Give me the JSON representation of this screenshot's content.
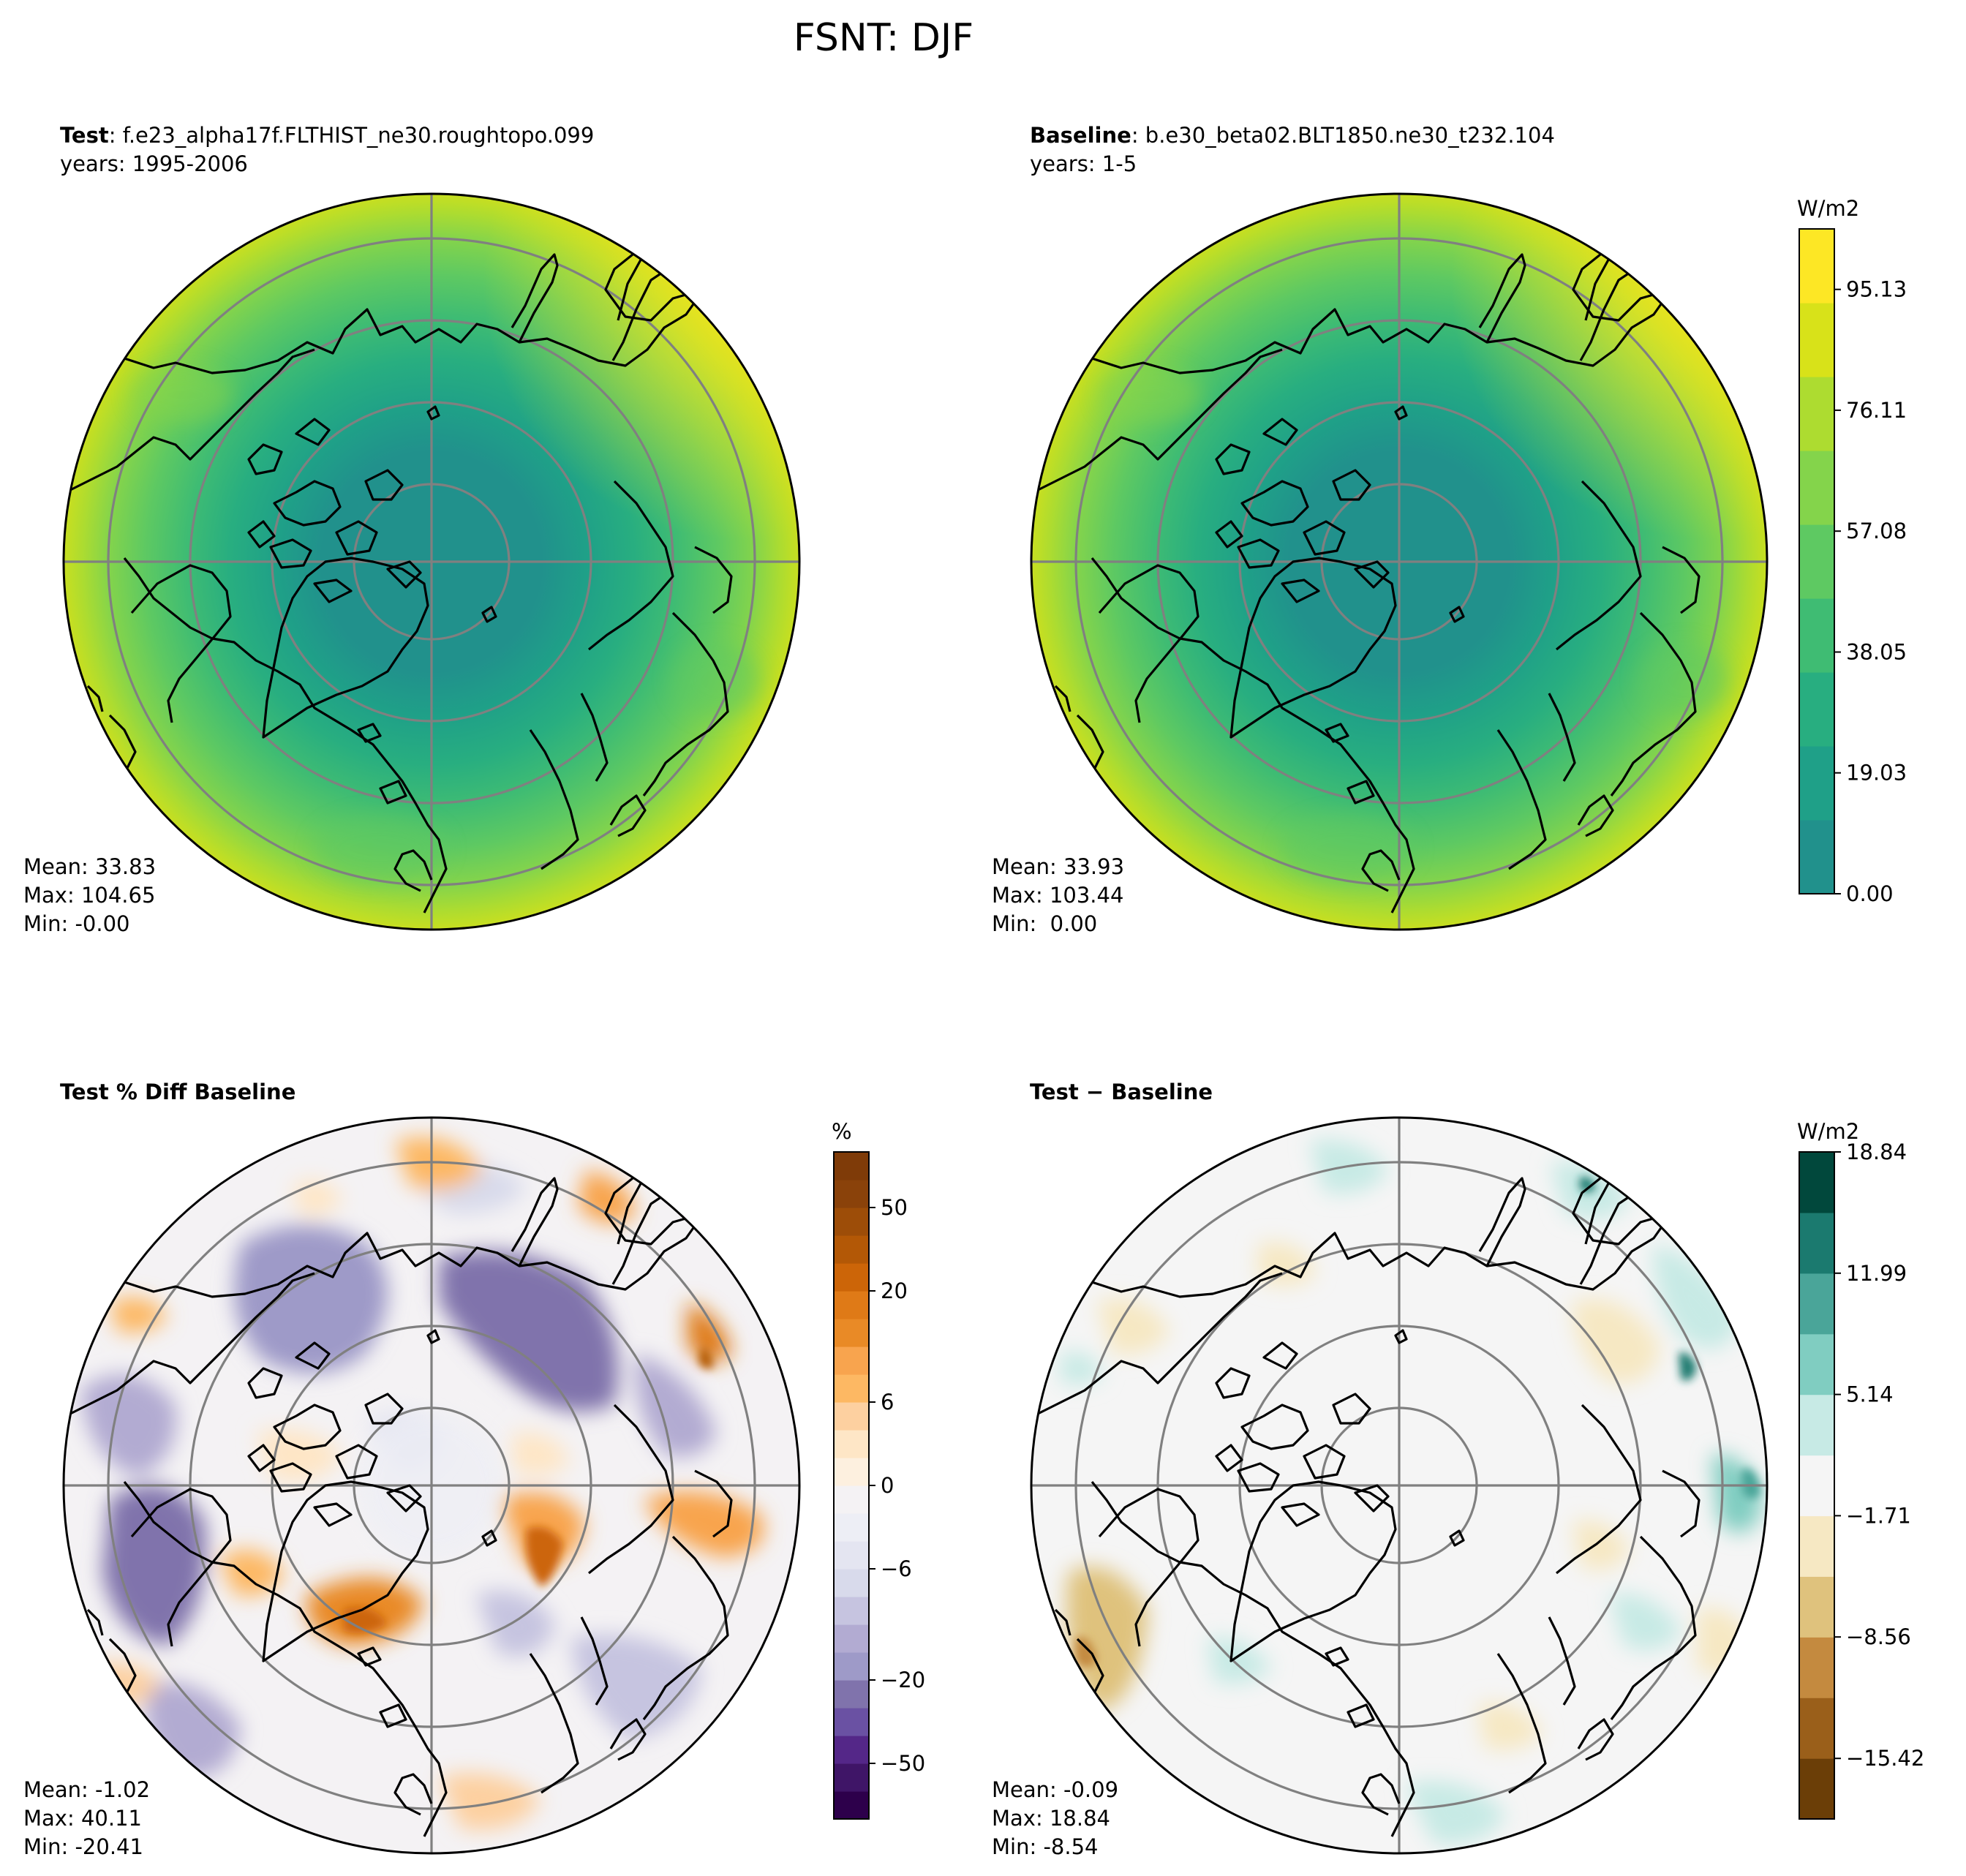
{
  "figure_title": "FSNT: DJF",
  "panels": [
    {
      "label_bold": "Test",
      "label_rest": ": f.e23_alpha17f.FLTHIST_ne30.roughtopo.099",
      "years": "years: 1995-2006",
      "stats": {
        "mean": "Mean: 33.83",
        "max": "Max: 104.65",
        "min": "Min: -0.00"
      }
    },
    {
      "label_bold": "Baseline",
      "label_rest": ": b.e30_beta02.BLT1850.ne30_t232.104",
      "years": "years: 1-5",
      "stats": {
        "mean": "Mean: 33.93",
        "max": "Max: 103.44",
        "min": "Min:  0.00"
      }
    },
    {
      "label_bold": "Test % Diff Baseline",
      "label_rest": "",
      "years": "",
      "stats": {
        "mean": "Mean: -1.02",
        "max": "Max: 40.11",
        "min": "Min: -20.41"
      }
    },
    {
      "label_bold": "Test",
      "label_rest": " − Baseline",
      "years": "",
      "stats": {
        "mean": "Mean: -0.09",
        "max": "Max: 18.84",
        "min": "Min: -8.54"
      }
    }
  ],
  "colorbars": [
    {
      "name": "field",
      "unit": "W/m2",
      "ticks": [
        "0.00",
        "19.03",
        "38.05",
        "57.08",
        "76.11",
        "95.13"
      ],
      "tick_values": [
        0.0,
        19.03,
        38.05,
        57.08,
        76.11,
        95.13
      ],
      "range": [
        0,
        104.65
      ],
      "colors": [
        "#21918c",
        "#1fa088",
        "#28ae80",
        "#3fbc73",
        "#5ec962",
        "#84d44b",
        "#addc30",
        "#d8e219",
        "#fde725"
      ]
    },
    {
      "name": "pct",
      "unit": "%",
      "ticks": [
        "−50",
        "−20",
        "−6",
        "0",
        "6",
        "20",
        "50"
      ],
      "levels": [
        "-70",
        "-60",
        "-50",
        "-40",
        "-30",
        "-20",
        "-15",
        "-10",
        "-8",
        "-6",
        "-4",
        "-2",
        "0",
        "2",
        "4",
        "6",
        "8",
        "10",
        "15",
        "20",
        "30",
        "40",
        "50",
        "60",
        "70"
      ],
      "colors": [
        "#2d004b",
        "#3f1567",
        "#542788",
        "#6a51a3",
        "#8073ac",
        "#9e9ac8",
        "#b2abd2",
        "#c6c4e0",
        "#d8daeb",
        "#e4e5f1",
        "#edeef5",
        "#f4f2f4",
        "#fdf0df",
        "#fee6c6",
        "#fdd0a0",
        "#fdb863",
        "#f8a44e",
        "#e98a26",
        "#df7a17",
        "#cc6508",
        "#b35806",
        "#9d4d08",
        "#8a420a",
        "#7f3b08"
      ]
    },
    {
      "name": "diff",
      "unit": "W/m2",
      "ticks": [
        "−15.42",
        "−8.56",
        "−1.71",
        "5.14",
        "11.99",
        "18.84"
      ],
      "tick_values": [
        -15.42,
        -8.56,
        -1.71,
        5.14,
        11.99,
        18.84
      ],
      "range": [
        -18.84,
        18.84
      ],
      "colors": [
        "#6b3e07",
        "#9a5f1a",
        "#c48a3f",
        "#dfc27d",
        "#f6e8c3",
        "#f5f5f5",
        "#c7eae5",
        "#80cdc1",
        "#4aa599",
        "#1b7a6f",
        "#01483c"
      ]
    }
  ],
  "chart_data": [
    {
      "type": "heatmap",
      "projection": "north polar stereographic",
      "title": "Test: f.e23_alpha17f.FLTHIST_ne30.roughtopo.099",
      "variable": "FSNT",
      "season": "DJF",
      "units": "W/m2",
      "mean": 33.83,
      "max": 104.65,
      "min": -0.0
    },
    {
      "type": "heatmap",
      "projection": "north polar stereographic",
      "title": "Baseline: b.e30_beta02.BLT1850.ne30_t232.104",
      "variable": "FSNT",
      "season": "DJF",
      "units": "W/m2",
      "mean": 33.93,
      "max": 103.44,
      "min": 0.0
    },
    {
      "type": "heatmap",
      "projection": "north polar stereographic",
      "title": "Test % Diff Baseline",
      "units": "%",
      "mean": -1.02,
      "max": 40.11,
      "min": -20.41
    },
    {
      "type": "heatmap",
      "projection": "north polar stereographic",
      "title": "Test − Baseline",
      "units": "W/m2",
      "mean": -0.09,
      "max": 18.84,
      "min": -8.54
    }
  ]
}
